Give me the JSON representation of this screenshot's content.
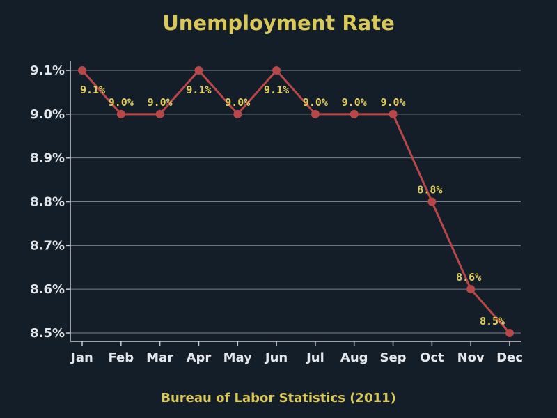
{
  "chart_data": {
    "type": "line",
    "title": "Unemployment Rate",
    "source": "Bureau of Labor Statistics (2011)",
    "categories": [
      "Jan",
      "Feb",
      "Mar",
      "Apr",
      "May",
      "Jun",
      "Jul",
      "Aug",
      "Sep",
      "Oct",
      "Nov",
      "Dec"
    ],
    "series": [
      {
        "values": [
          9.1,
          9.0,
          9.0,
          9.1,
          9.0,
          9.1,
          9.0,
          9.0,
          9.0,
          8.8,
          8.6,
          8.5
        ]
      }
    ],
    "data_labels": [
      "9.1%",
      "9.0%",
      "9.0%",
      "9.1%",
      "9.0%",
      "9.1%",
      "9.0%",
      "9.0%",
      "9.0%",
      "8.8%",
      "8.6%",
      "8.5%"
    ],
    "y_ticks": [
      8.5,
      8.6,
      8.7,
      8.8,
      8.9,
      9.0,
      9.1
    ],
    "y_tick_labels": [
      "8.5%",
      "8.6%",
      "8.7%",
      "8.8%",
      "8.9%",
      "9.0%",
      "9.1%"
    ],
    "ylim": [
      8.5,
      9.1
    ],
    "grid": "horizontal",
    "legend": "none",
    "colors": {
      "background": "#141e28",
      "line": "#b8474a",
      "marker": "#b8474a",
      "grid": "#7b8088",
      "axis": "#c9ccd2",
      "tick_label": "#e4e6ea",
      "data_label": "#e3cf5c",
      "title": "#d9c85a"
    }
  }
}
